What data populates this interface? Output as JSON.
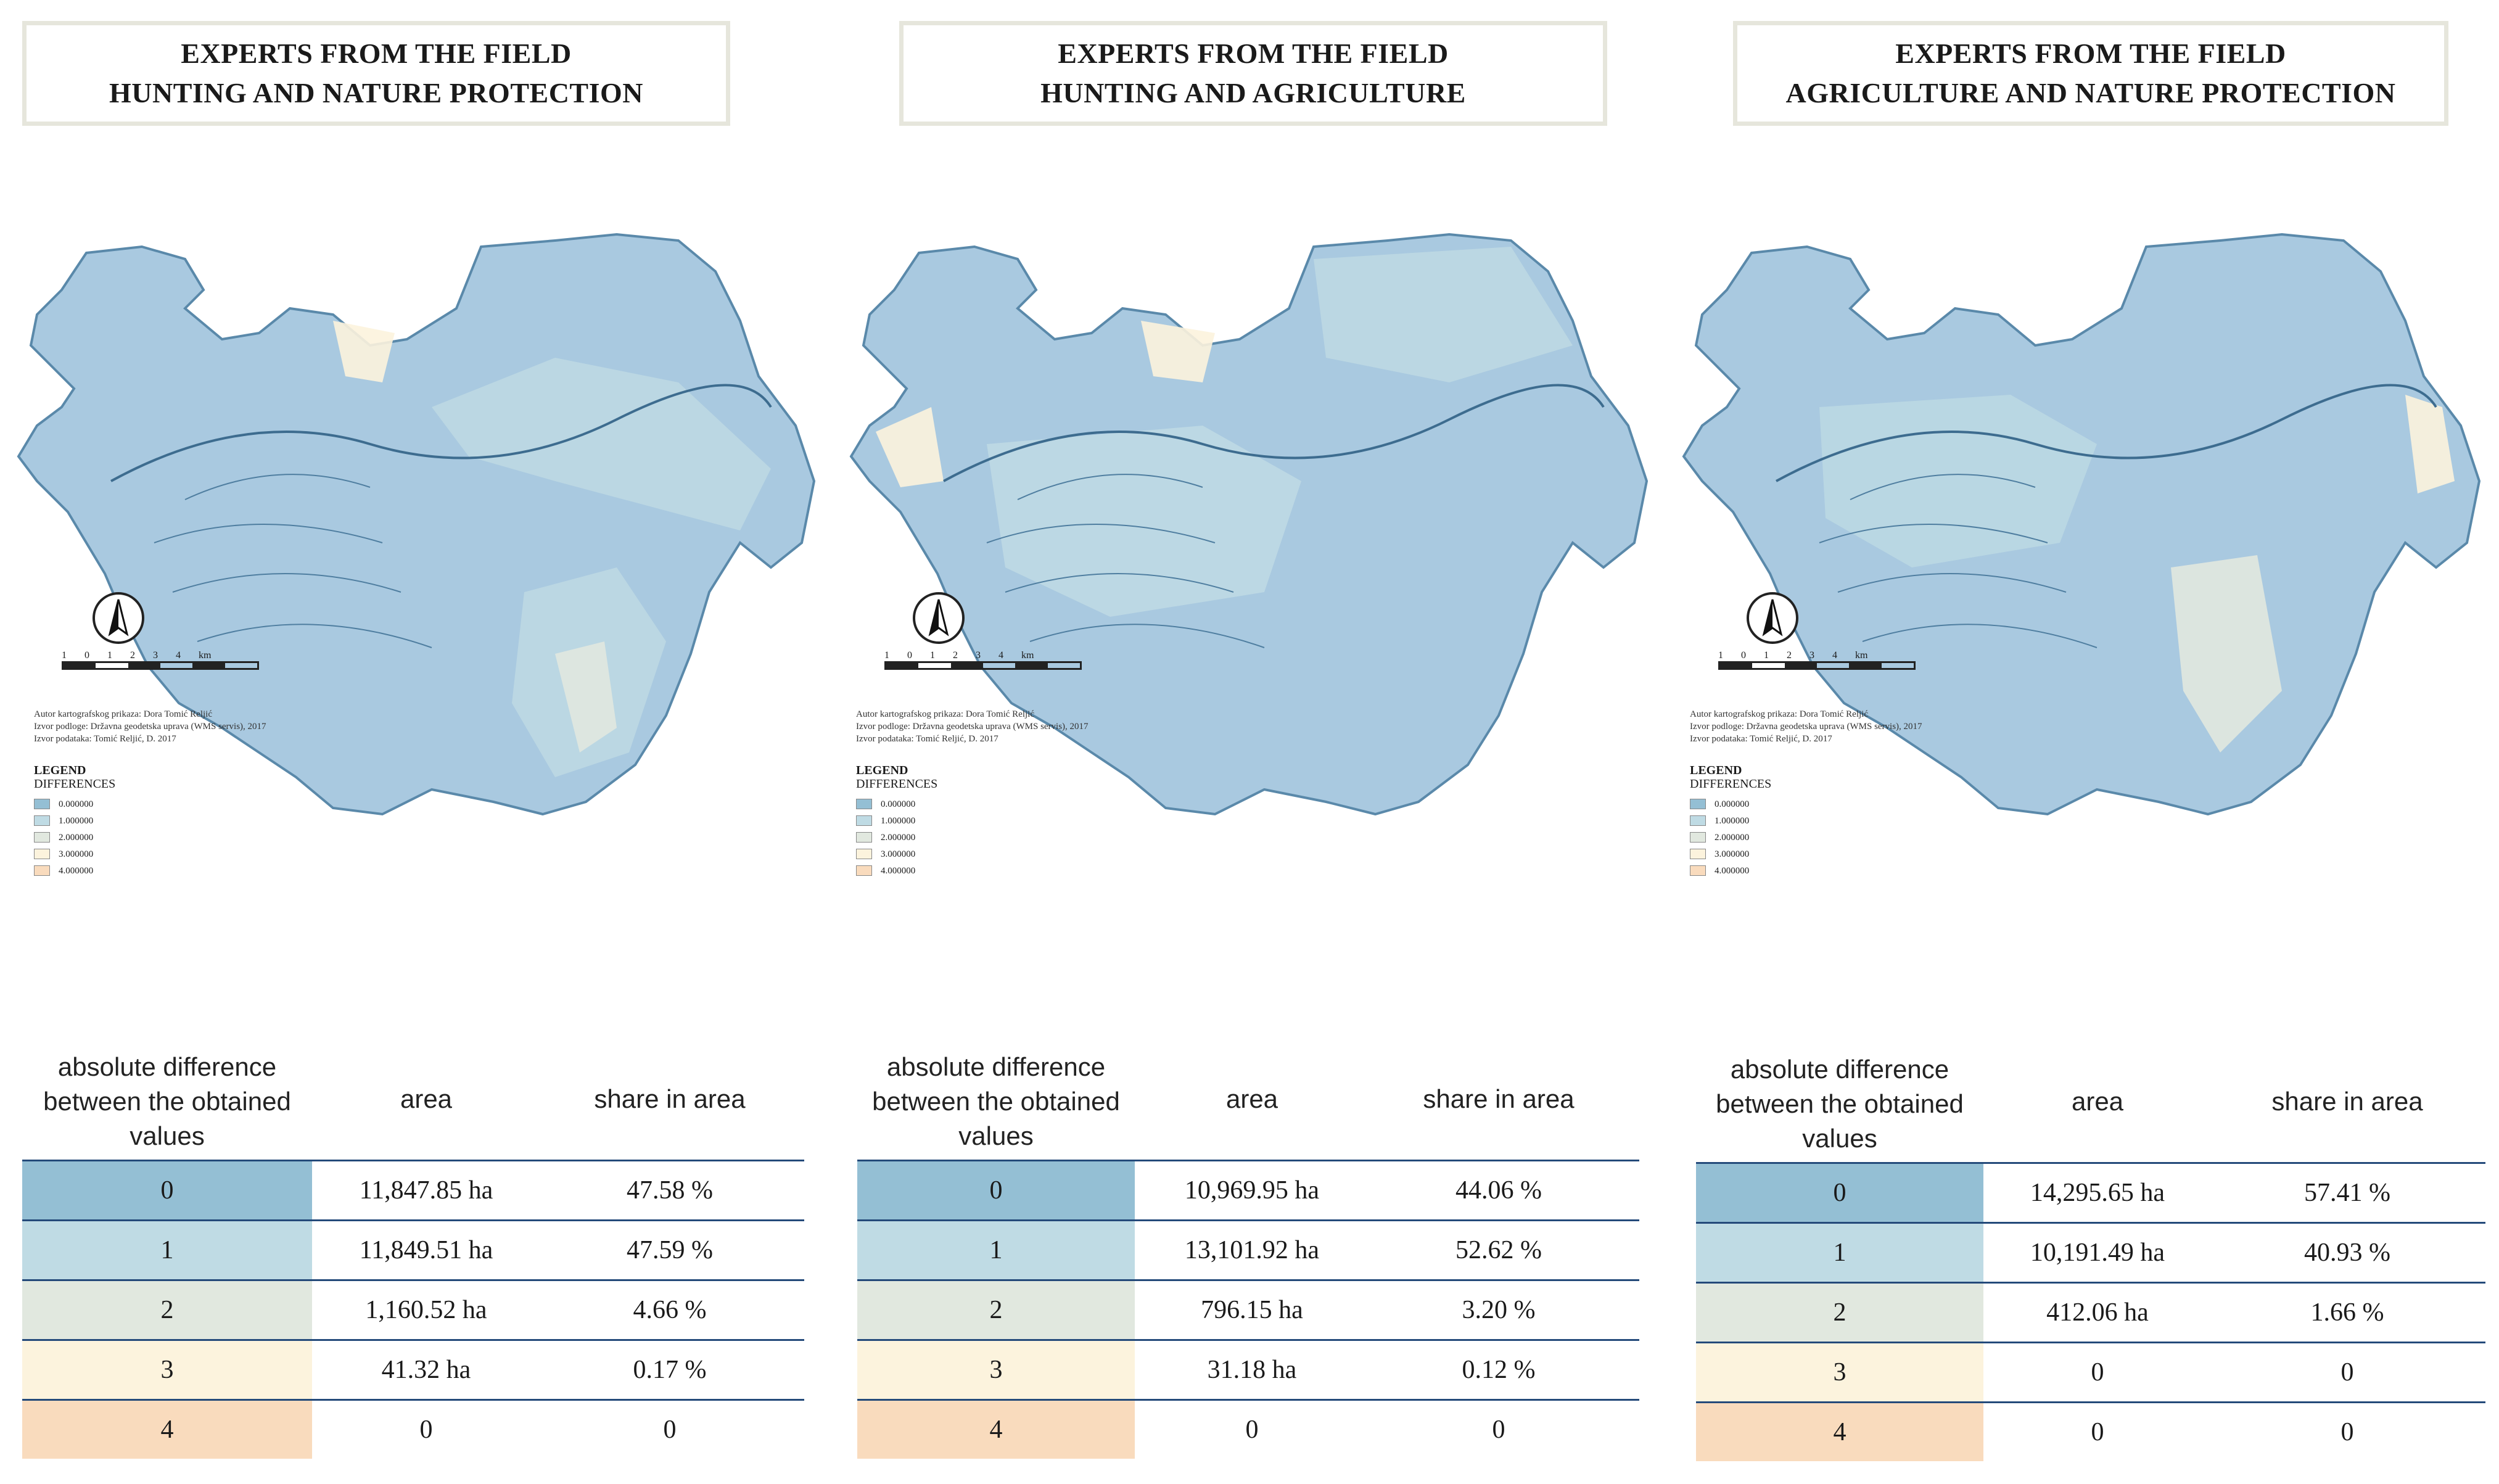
{
  "colors": {
    "class0": "#94bfd4",
    "class1": "#bfdbe4",
    "class2": "#e1e8df",
    "class3": "#fcf3dd",
    "class4": "#f9dbbd",
    "map_fill": "#a9c9e0",
    "rule": "#244a7a"
  },
  "panels": [
    {
      "title_line1": "EXPERTS FROM THE FIELD",
      "title_line2": "HUNTING AND NATURE PROTECTION",
      "legend_title": "LEGEND",
      "legend_subtitle": "DIFFERENCES",
      "legend_items": [
        "0.000000",
        "1.000000",
        "2.000000",
        "3.000000",
        "4.000000"
      ],
      "scale_ticks": [
        "1",
        "0",
        "1",
        "2",
        "3",
        "4",
        "km"
      ],
      "credits": [
        "Autor kartografskog prikaza: Dora Tomić Reljić",
        "Izvor podloge: Državna geodetska uprava (WMS servis), 2017",
        "Izvor podataka: Tomić Reljić, D. 2017"
      ],
      "table": {
        "headers": [
          "absolute difference between the obtained values",
          "area",
          "share in area"
        ],
        "rows": [
          {
            "value": "0",
            "area": "11,847.85 ha",
            "share": "47.58 %"
          },
          {
            "value": "1",
            "area": "11,849.51 ha",
            "share": "47.59 %"
          },
          {
            "value": "2",
            "area": "1,160.52 ha",
            "share": "4.66 %"
          },
          {
            "value": "3",
            "area": "41.32 ha",
            "share": "0.17 %"
          },
          {
            "value": "4",
            "area": "0",
            "share": "0"
          }
        ]
      }
    },
    {
      "title_line1": "EXPERTS FROM THE FIELD",
      "title_line2": "HUNTING AND AGRICULTURE",
      "legend_title": "LEGEND",
      "legend_subtitle": "DIFFERENCES",
      "legend_items": [
        "0.000000",
        "1.000000",
        "2.000000",
        "3.000000",
        "4.000000"
      ],
      "scale_ticks": [
        "1",
        "0",
        "1",
        "2",
        "3",
        "4",
        "km"
      ],
      "credits": [
        "Autor kartografskog prikaza: Dora Tomić Reljić",
        "Izvor podloge: Državna geodetska uprava (WMS servis), 2017",
        "Izvor podataka: Tomić Reljić, D. 2017"
      ],
      "table": {
        "headers": [
          "absolute difference between the obtained values",
          "area",
          "share in area"
        ],
        "rows": [
          {
            "value": "0",
            "area": "10,969.95 ha",
            "share": "44.06 %"
          },
          {
            "value": "1",
            "area": "13,101.92 ha",
            "share": "52.62 %"
          },
          {
            "value": "2",
            "area": "796.15 ha",
            "share": "3.20 %"
          },
          {
            "value": "3",
            "area": "31.18 ha",
            "share": "0.12 %"
          },
          {
            "value": "4",
            "area": "0",
            "share": "0"
          }
        ]
      }
    },
    {
      "title_line1": "EXPERTS FROM THE FIELD",
      "title_line2": "AGRICULTURE AND NATURE PROTECTION",
      "legend_title": "LEGEND",
      "legend_subtitle": "DIFFERENCES",
      "legend_items": [
        "0.000000",
        "1.000000",
        "2.000000",
        "3.000000",
        "4.000000"
      ],
      "scale_ticks": [
        "1",
        "0",
        "1",
        "2",
        "3",
        "4",
        "km"
      ],
      "credits": [
        "Autor kartografskog prikaza: Dora Tomić Reljić",
        "Izvor podloge: Državna geodetska uprava (WMS servis), 2017",
        "Izvor podataka: Tomić Reljić, D. 2017"
      ],
      "table": {
        "headers": [
          "absolute difference between the obtained values",
          "area",
          "share in area"
        ],
        "rows": [
          {
            "value": "0",
            "area": "14,295.65 ha",
            "share": "57.41 %"
          },
          {
            "value": "1",
            "area": "10,191.49 ha",
            "share": "40.93 %"
          },
          {
            "value": "2",
            "area": "412.06 ha",
            "share": "1.66 %"
          },
          {
            "value": "3",
            "area": "0",
            "share": "0"
          },
          {
            "value": "4",
            "area": "0",
            "share": "0"
          }
        ]
      }
    }
  ]
}
